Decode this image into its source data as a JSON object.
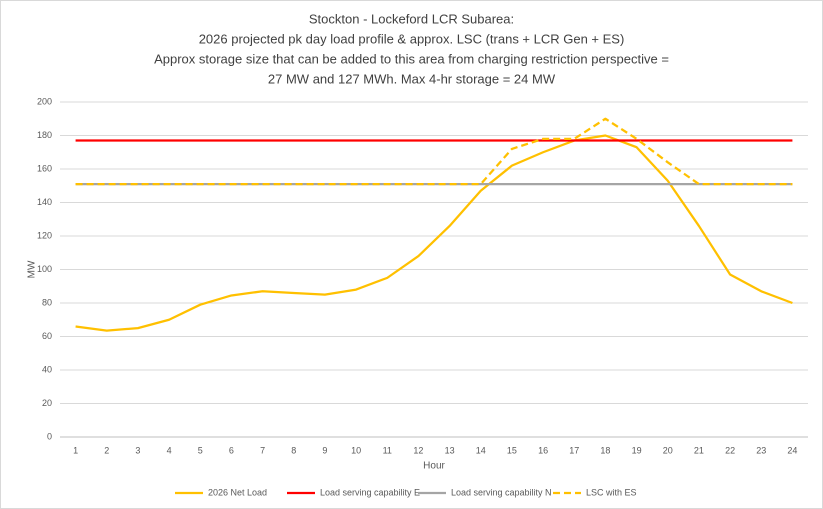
{
  "chart_data": {
    "type": "line",
    "title": [
      "Stockton - Lockeford LCR Subarea:",
      "2026 projected pk day load profile & approx. LSC (trans + LCR Gen + ES)",
      "Approx storage size that can be added to this area from charging restriction perspective =",
      "27 MW and 127 MWh. Max 4-hr storage = 24 MW"
    ],
    "x_label": "Hour",
    "y_label": "MW",
    "categories": [
      1,
      2,
      3,
      4,
      5,
      6,
      7,
      8,
      9,
      10,
      11,
      12,
      13,
      14,
      15,
      16,
      17,
      18,
      19,
      20,
      21,
      22,
      23,
      24
    ],
    "series": [
      {
        "name": "2026 Net Load",
        "color": "#FFC000",
        "dashed": false,
        "values": [
          66,
          63.5,
          65,
          70,
          79,
          84.5,
          87,
          86,
          85,
          88,
          95,
          108,
          126,
          147,
          162,
          170,
          177,
          180,
          173,
          153,
          126,
          97,
          87,
          80
        ]
      },
      {
        "name": "Load serving capability E",
        "color": "#FF0000",
        "dashed": false,
        "values": [
          177,
          177,
          177,
          177,
          177,
          177,
          177,
          177,
          177,
          177,
          177,
          177,
          177,
          177,
          177,
          177,
          177,
          177,
          177,
          177,
          177,
          177,
          177,
          177
        ]
      },
      {
        "name": "Load serving capability N",
        "color": "#A5A5A5",
        "dashed": false,
        "values": [
          151,
          151,
          151,
          151,
          151,
          151,
          151,
          151,
          151,
          151,
          151,
          151,
          151,
          151,
          151,
          151,
          151,
          151,
          151,
          151,
          151,
          151,
          151,
          151
        ]
      },
      {
        "name": "LSC with ES",
        "color": "#FFC000",
        "dashed": true,
        "values": [
          151,
          151,
          151,
          151,
          151,
          151,
          151,
          151,
          151,
          151,
          151,
          151,
          151,
          151,
          172,
          178,
          178,
          190,
          178,
          164,
          151,
          151,
          151,
          151
        ]
      }
    ],
    "ylim": [
      0,
      200
    ],
    "yticks": [
      0,
      20,
      40,
      60,
      80,
      100,
      120,
      140,
      160,
      180,
      200
    ],
    "grid": true,
    "legend": "bottom"
  }
}
